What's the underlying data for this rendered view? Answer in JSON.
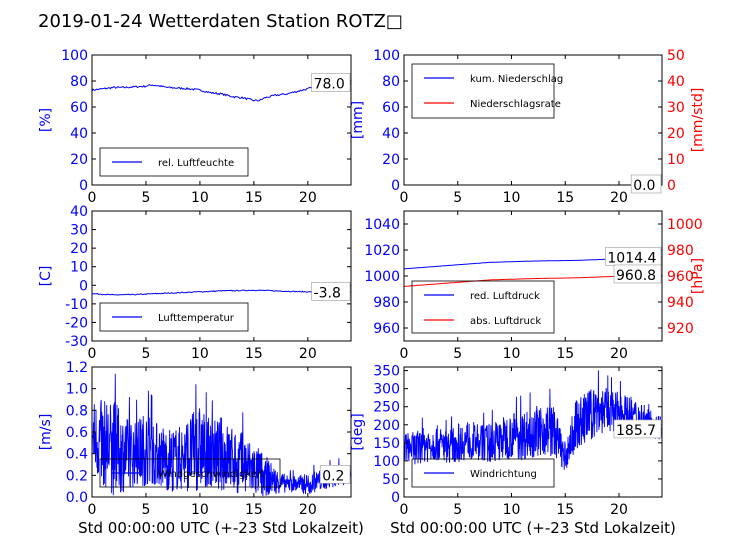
{
  "title": "2019-01-24 Wetterdaten Station ROTZ□",
  "x_axis_label": "Std 00:00:00 UTC (+-23 Std Lokalzeit)",
  "colors": {
    "blue": "#0000ff",
    "red": "#ff0000",
    "axis": "#000000"
  },
  "chart_data": [
    {
      "id": "humidity",
      "type": "line",
      "xlim": [
        0,
        24
      ],
      "ylim": [
        0,
        100
      ],
      "xticks": [
        0,
        5,
        10,
        15,
        20
      ],
      "yticks": [
        0,
        20,
        40,
        60,
        80,
        100
      ],
      "ylabel": "[%]",
      "last_value": "78.0",
      "legend": [
        {
          "label": "rel. Luftfeuchte",
          "color": "#0000ff"
        }
      ],
      "series": [
        {
          "name": "rel. Luftfeuchte",
          "color": "#0000ff",
          "x": [
            0,
            1,
            2,
            3,
            4,
            5,
            5.5,
            6,
            7,
            8,
            9,
            10,
            11,
            12,
            13,
            14,
            15,
            15.5,
            16,
            17,
            18,
            19,
            20,
            21,
            22,
            23,
            24
          ],
          "y": [
            73,
            74,
            75,
            75,
            75.5,
            76,
            77,
            76.5,
            75,
            74.5,
            74,
            73,
            71,
            70,
            68,
            67,
            65,
            65,
            67,
            69,
            70,
            72,
            74,
            76,
            77,
            77.5,
            78
          ]
        }
      ]
    },
    {
      "id": "precip",
      "type": "line",
      "xlim": [
        0,
        24
      ],
      "ylim": [
        0,
        100
      ],
      "y2lim": [
        0,
        50
      ],
      "xticks": [
        0,
        5,
        10,
        15,
        20
      ],
      "yticks": [
        0,
        20,
        40,
        60,
        80,
        100
      ],
      "y2ticks": [
        0,
        10,
        20,
        30,
        40,
        50
      ],
      "ylabel": "[mm]",
      "y2label": "[mm/std]",
      "last_value": "0.0",
      "last_value2": "0.0",
      "legend": [
        {
          "label": "kum. Niederschlag",
          "color": "#0000ff"
        },
        {
          "label": "Niederschlagsrate",
          "color": "#ff0000"
        }
      ],
      "series": [
        {
          "name": "kum. Niederschlag",
          "color": "#0000ff",
          "x": [
            0,
            24
          ],
          "y": [
            0,
            0
          ]
        },
        {
          "name": "Niederschlagsrate",
          "color": "#ff0000",
          "x": [
            0,
            24
          ],
          "y": [
            0,
            0
          ],
          "axis": "right"
        }
      ]
    },
    {
      "id": "temperature",
      "type": "line",
      "xlim": [
        0,
        24
      ],
      "ylim": [
        -30,
        40
      ],
      "xticks": [
        0,
        5,
        10,
        15,
        20
      ],
      "yticks": [
        -30,
        -20,
        -10,
        0,
        10,
        20,
        30,
        40
      ],
      "ylabel": "[C]",
      "last_value": "-3.8",
      "legend": [
        {
          "label": "Lufttemperatur",
          "color": "#0000ff"
        }
      ],
      "series": [
        {
          "name": "Lufttemperatur",
          "color": "#0000ff",
          "x": [
            0,
            2,
            4,
            6,
            8,
            10,
            12,
            14,
            15,
            16,
            18,
            20,
            22,
            24
          ],
          "y": [
            -4.5,
            -5.2,
            -5,
            -4.5,
            -4,
            -3.5,
            -3,
            -2.8,
            -2.6,
            -2.8,
            -3.2,
            -3.5,
            -3.7,
            -3.8
          ]
        }
      ]
    },
    {
      "id": "pressure",
      "type": "line",
      "xlim": [
        0,
        24
      ],
      "ylim": [
        950,
        1050
      ],
      "y2lim": [
        910,
        1010
      ],
      "xticks": [
        0,
        5,
        10,
        15,
        20
      ],
      "yticks": [
        960,
        980,
        1000,
        1020,
        1040
      ],
      "y2ticks": [
        920,
        940,
        960,
        980,
        1000
      ],
      "ylabel": "",
      "y2label": "[hPa]",
      "last_value": "1014.4",
      "last_value2": "960.8",
      "legend": [
        {
          "label": "red. Luftdruck",
          "color": "#0000ff"
        },
        {
          "label": "abs. Luftdruck",
          "color": "#ff0000"
        }
      ],
      "series": [
        {
          "name": "red. Luftdruck",
          "color": "#0000ff",
          "x": [
            0,
            4,
            8,
            12,
            16,
            20,
            24
          ],
          "y": [
            1005.5,
            1008,
            1010.5,
            1011.5,
            1012,
            1013.2,
            1014.4
          ]
        },
        {
          "name": "abs. Luftdruck",
          "color": "#ff0000",
          "x": [
            0,
            4,
            8,
            12,
            16,
            20,
            24
          ],
          "y": [
            952,
            954.5,
            957,
            958,
            958.6,
            959.8,
            960.8
          ],
          "axis": "right"
        }
      ]
    },
    {
      "id": "windspeed",
      "type": "line",
      "xlim": [
        0,
        24
      ],
      "ylim": [
        0,
        1.2
      ],
      "xticks": [
        0,
        5,
        10,
        15,
        20
      ],
      "yticks": [
        0.0,
        0.2,
        0.4,
        0.6,
        0.8,
        1.0,
        1.2
      ],
      "ylabel": "[m/s]",
      "last_value": "0.2",
      "noisy": true,
      "legend": [
        {
          "label": "Windgeschwindigkeit",
          "color": "#0000ff"
        }
      ],
      "series": [
        {
          "name": "Windgeschwindigkeit",
          "color": "#0000ff",
          "x": [
            0,
            1,
            2,
            3,
            4,
            5,
            6,
            7,
            8,
            9,
            10,
            11,
            12,
            13,
            14,
            15,
            16,
            17,
            18,
            19,
            20,
            21,
            22,
            23,
            24
          ],
          "y": [
            0.55,
            0.5,
            0.45,
            0.4,
            0.4,
            0.45,
            0.4,
            0.35,
            0.35,
            0.4,
            0.45,
            0.4,
            0.4,
            0.35,
            0.3,
            0.25,
            0.2,
            0.15,
            0.12,
            0.12,
            0.12,
            0.15,
            0.18,
            0.2,
            0.2
          ],
          "spread": [
            0.35,
            0.4,
            0.45,
            0.35,
            0.3,
            0.35,
            0.3,
            0.3,
            0.3,
            0.35,
            0.4,
            0.3,
            0.35,
            0.3,
            0.3,
            0.25,
            0.2,
            0.12,
            0.08,
            0.08,
            0.1,
            0.1,
            0.1,
            0.1,
            0.08
          ]
        }
      ]
    },
    {
      "id": "winddir",
      "type": "line",
      "xlim": [
        0,
        24
      ],
      "ylim": [
        0,
        360
      ],
      "xticks": [
        0,
        5,
        10,
        15,
        20
      ],
      "yticks": [
        0,
        50,
        100,
        150,
        200,
        250,
        300,
        350
      ],
      "ylabel": "[deg]",
      "last_value": "185.7",
      "noisy": true,
      "legend": [
        {
          "label": "Windrichtung",
          "color": "#0000ff"
        }
      ],
      "series": [
        {
          "name": "Windrichtung",
          "color": "#0000ff",
          "x": [
            0,
            1,
            2,
            3,
            4,
            5,
            6,
            7,
            8,
            9,
            10,
            11,
            12,
            13,
            14,
            15,
            16,
            17,
            18,
            19,
            20,
            21,
            22,
            23,
            24
          ],
          "y": [
            140,
            135,
            145,
            150,
            140,
            150,
            160,
            150,
            150,
            160,
            170,
            170,
            180,
            190,
            180,
            110,
            200,
            220,
            240,
            240,
            235,
            230,
            220,
            210,
            190
          ],
          "spread": [
            40,
            45,
            50,
            50,
            45,
            55,
            55,
            50,
            55,
            60,
            65,
            70,
            70,
            75,
            70,
            40,
            70,
            75,
            70,
            60,
            55,
            50,
            45,
            45,
            35
          ]
        }
      ]
    }
  ]
}
